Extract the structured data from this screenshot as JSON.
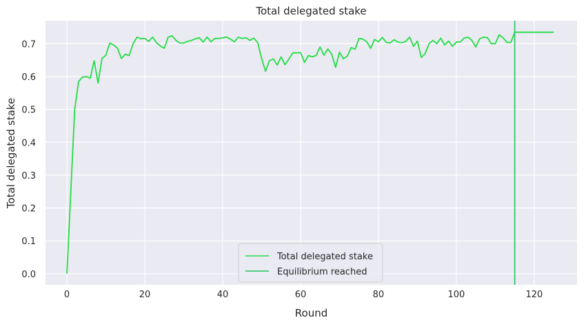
{
  "chart_data": {
    "type": "line",
    "title": "Total delegated stake",
    "xlabel": "Round",
    "ylabel": "Total delegated stake",
    "xlim": [
      -5.5,
      131
    ],
    "ylim": [
      -0.034,
      0.77
    ],
    "xticks": [
      0,
      20,
      40,
      60,
      80,
      100,
      120
    ],
    "yticks": [
      0.0,
      0.1,
      0.2,
      0.3,
      0.4,
      0.5,
      0.6,
      0.7
    ],
    "xtick_labels": [
      "0",
      "20",
      "40",
      "60",
      "80",
      "100",
      "120"
    ],
    "ytick_labels": [
      "0.0",
      "0.1",
      "0.2",
      "0.3",
      "0.4",
      "0.5",
      "0.6",
      "0.7"
    ],
    "grid": true,
    "legend_position": "lower center",
    "series": [
      {
        "name": "Total delegated stake",
        "color": "#22dd44",
        "x": [
          0,
          1,
          2,
          3,
          4,
          5,
          6,
          7,
          8,
          9,
          10,
          11,
          12,
          13,
          14,
          15,
          16,
          17,
          18,
          19,
          20,
          21,
          22,
          23,
          24,
          25,
          26,
          27,
          28,
          29,
          30,
          31,
          32,
          33,
          34,
          35,
          36,
          37,
          38,
          39,
          40,
          41,
          42,
          43,
          44,
          45,
          46,
          47,
          48,
          49,
          50,
          51,
          52,
          53,
          54,
          55,
          56,
          57,
          58,
          59,
          60,
          61,
          62,
          63,
          64,
          65,
          66,
          67,
          68,
          69,
          70,
          71,
          72,
          73,
          74,
          75,
          76,
          77,
          78,
          79,
          80,
          81,
          82,
          83,
          84,
          85,
          86,
          87,
          88,
          89,
          90,
          91,
          92,
          93,
          94,
          95,
          96,
          97,
          98,
          99,
          100,
          101,
          102,
          103,
          104,
          105,
          106,
          107,
          108,
          109,
          110,
          111,
          112,
          113,
          114,
          115,
          116,
          117,
          118,
          119,
          120,
          121,
          122,
          123,
          124,
          125
        ],
        "y": [
          0.0,
          0.25,
          0.5,
          0.585,
          0.598,
          0.6,
          0.595,
          0.648,
          0.58,
          0.655,
          0.665,
          0.702,
          0.696,
          0.686,
          0.655,
          0.668,
          0.664,
          0.7,
          0.72,
          0.715,
          0.716,
          0.707,
          0.72,
          0.703,
          0.693,
          0.686,
          0.72,
          0.724,
          0.71,
          0.702,
          0.702,
          0.707,
          0.71,
          0.715,
          0.718,
          0.705,
          0.72,
          0.706,
          0.716,
          0.716,
          0.718,
          0.72,
          0.714,
          0.706,
          0.72,
          0.716,
          0.718,
          0.71,
          0.717,
          0.703,
          0.655,
          0.616,
          0.648,
          0.654,
          0.635,
          0.66,
          0.636,
          0.653,
          0.672,
          0.672,
          0.673,
          0.643,
          0.664,
          0.66,
          0.664,
          0.69,
          0.665,
          0.684,
          0.668,
          0.628,
          0.674,
          0.654,
          0.662,
          0.688,
          0.683,
          0.716,
          0.714,
          0.706,
          0.686,
          0.713,
          0.706,
          0.719,
          0.704,
          0.702,
          0.712,
          0.705,
          0.703,
          0.707,
          0.72,
          0.692,
          0.708,
          0.658,
          0.67,
          0.7,
          0.71,
          0.7,
          0.717,
          0.696,
          0.708,
          0.692,
          0.705,
          0.705,
          0.717,
          0.72,
          0.71,
          0.69,
          0.715,
          0.72,
          0.718,
          0.7,
          0.7,
          0.727,
          0.718,
          0.704,
          0.704,
          0.735,
          0.735,
          0.735,
          0.735,
          0.735,
          0.735,
          0.735,
          0.735,
          0.735,
          0.735,
          0.735
        ]
      },
      {
        "name": "Equilibrium reached",
        "color": "#23c45a",
        "type": "vline",
        "x": 115
      }
    ]
  }
}
